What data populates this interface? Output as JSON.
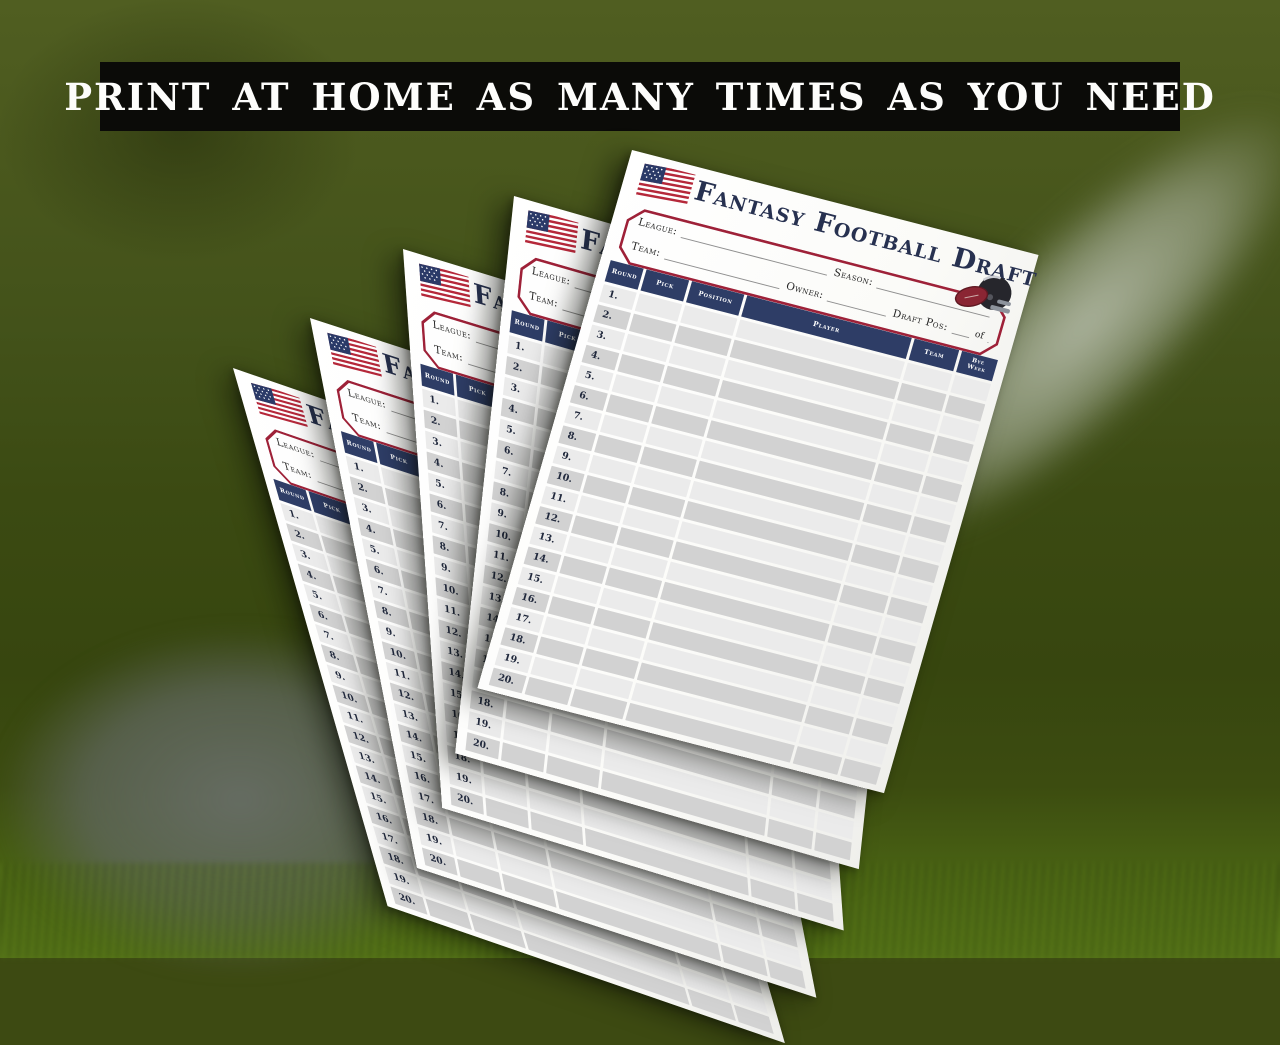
{
  "banner": {
    "text": "PRINT AT HOME AS MANY TIMES AS YOU NEED"
  },
  "background": {
    "scene": "blurred grass football field with white yard line",
    "field_green": "#3b4a12",
    "yard_line_gray": "#b4baa6",
    "banner_black": "#0b0b08"
  },
  "sheet": {
    "copies": 5,
    "title": "Fantasy Football Draft",
    "icons": {
      "flag": "us-flag-icon",
      "helmet": "football-helmet-icon"
    },
    "fields": {
      "league": "League:",
      "season": "Season:",
      "team": "Team:",
      "owner": "Owner:",
      "draft_pos": "Draft Pos:",
      "of": "of"
    },
    "table": {
      "headers": [
        "Round",
        "Pick",
        "Position",
        "Player",
        "Team",
        "Bye Week"
      ],
      "round_numbers": [
        "1.",
        "2.",
        "3.",
        "4.",
        "5.",
        "6.",
        "7.",
        "8.",
        "9.",
        "10.",
        "11.",
        "12.",
        "13.",
        "14.",
        "15.",
        "16.",
        "17.",
        "18.",
        "19.",
        "20."
      ]
    },
    "colors": {
      "header_navy": "#2e3d66",
      "border_red": "#9e2138",
      "title_navy": "#273150",
      "row_light": "#ebebeb",
      "row_dark": "#d2d2d2",
      "paper": "#fbfbf8"
    }
  }
}
